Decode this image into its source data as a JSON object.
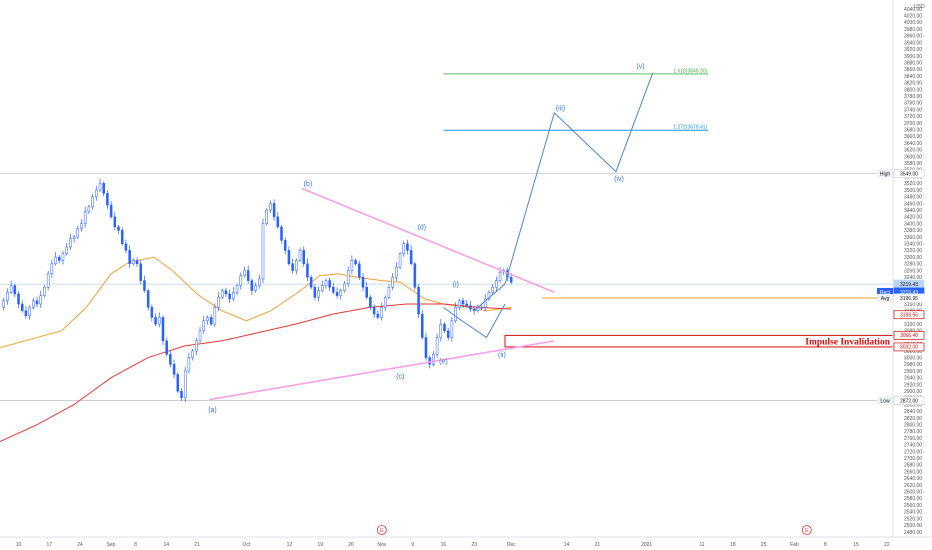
{
  "chart_data": {
    "type": "candlestick",
    "currency": "USD",
    "y_ticks": [
      2480,
      2500,
      2520,
      2540,
      2560,
      2580,
      2600,
      2620,
      2640,
      2660,
      2680,
      2700,
      2720,
      2740,
      2760,
      2780,
      2800,
      2820,
      2840,
      2860,
      2880,
      2900,
      2920,
      2940,
      2960,
      2980,
      3000,
      3020,
      3040,
      3060,
      3080,
      3100,
      3120,
      3140,
      3160,
      3180,
      3200,
      3220,
      3240,
      3260,
      3280,
      3300,
      3320,
      3340,
      3360,
      3380,
      3400,
      3420,
      3440,
      3460,
      3480,
      3500,
      3520,
      3540,
      3560,
      3580,
      3600,
      3620,
      3640,
      3660,
      3680,
      3700,
      3720,
      3740,
      3760,
      3780,
      3800,
      3820,
      3840,
      3860,
      3880,
      3900,
      3920,
      3940,
      3960,
      3980,
      4000,
      4020,
      4040
    ],
    "ylim": [
      2465,
      4055
    ],
    "x_ticks": [
      {
        "label": "10",
        "bar": 3
      },
      {
        "label": "17",
        "bar": 8
      },
      {
        "label": "24",
        "bar": 13
      },
      {
        "label": "Sep",
        "bar": 18
      },
      {
        "label": "8",
        "bar": 22
      },
      {
        "label": "14",
        "bar": 27
      },
      {
        "label": "21",
        "bar": 32
      },
      {
        "label": "Oct",
        "bar": 40
      },
      {
        "label": "12",
        "bar": 47
      },
      {
        "label": "19",
        "bar": 52
      },
      {
        "label": "26",
        "bar": 57
      },
      {
        "label": "Nov",
        "bar": 62
      },
      {
        "label": "9",
        "bar": 67
      },
      {
        "label": "16",
        "bar": 72
      },
      {
        "label": "23",
        "bar": 77
      },
      {
        "label": "Dec",
        "bar": 83
      },
      {
        "label": "14",
        "bar": 92
      },
      {
        "label": "21",
        "bar": 97
      },
      {
        "label": "2021",
        "bar": 105
      },
      {
        "label": "11",
        "bar": 114
      },
      {
        "label": "18",
        "bar": 119
      },
      {
        "label": "25",
        "bar": 124
      },
      {
        "label": "Feb",
        "bar": 129
      },
      {
        "label": "8",
        "bar": 134
      },
      {
        "label": "15",
        "bar": 139
      },
      {
        "label": "22",
        "bar": 144
      }
    ],
    "xlim": [
      0,
      145
    ],
    "price_closes": [
      3150,
      3170,
      3195,
      3215,
      3190,
      3160,
      3140,
      3125,
      3150,
      3170,
      3160,
      3185,
      3210,
      3250,
      3280,
      3300,
      3290,
      3310,
      3330,
      3355,
      3360,
      3385,
      3400,
      3435,
      3450,
      3480,
      3500,
      3520,
      3490,
      3455,
      3420,
      3390,
      3380,
      3340,
      3320,
      3280,
      3290,
      3280,
      3230,
      3200,
      3150,
      3120,
      3100,
      3120,
      3050,
      3010,
      2980,
      2950,
      2900,
      2880,
      2960,
      3000,
      3020,
      3050,
      3080,
      3110,
      3120,
      3100,
      3150,
      3180,
      3200,
      3190,
      3175,
      3195,
      3215,
      3245,
      3260,
      3230,
      3200,
      3215,
      3235,
      3400,
      3440,
      3460,
      3420,
      3390,
      3350,
      3320,
      3280,
      3260,
      3290,
      3320,
      3280,
      3240,
      3210,
      3180,
      3200,
      3215,
      3230,
      3210,
      3195,
      3185,
      3200,
      3220,
      3260,
      3290,
      3280,
      3240,
      3210,
      3180,
      3150,
      3130,
      3120,
      3150,
      3180,
      3210,
      3240,
      3270,
      3310,
      3340,
      3320,
      3280,
      3210,
      3130,
      3060,
      3000,
      2980,
      3010,
      3060,
      3100,
      3080,
      3060,
      3110,
      3150,
      3170,
      3160,
      3155,
      3145,
      3140,
      3150,
      3150,
      3175,
      3195,
      3210,
      3230,
      3255,
      3260,
      3240,
      3225
    ],
    "candles_start_bar": 0,
    "candles_end_bar": 83,
    "series": [
      {
        "name": "",
        "color": "#f5a033",
        "points": [
          [
            0,
            3030
          ],
          [
            5,
            3055
          ],
          [
            10,
            3080
          ],
          [
            14,
            3150
          ],
          [
            18,
            3250
          ],
          [
            21,
            3285
          ],
          [
            25,
            3300
          ],
          [
            28,
            3260
          ],
          [
            32,
            3190
          ],
          [
            36,
            3140
          ],
          [
            40,
            3110
          ],
          [
            44,
            3140
          ],
          [
            48,
            3190
          ],
          [
            52,
            3245
          ],
          [
            55,
            3250
          ],
          [
            58,
            3240
          ],
          [
            62,
            3230
          ],
          [
            65,
            3225
          ],
          [
            69,
            3175
          ],
          [
            72,
            3160
          ],
          [
            76,
            3150
          ],
          [
            79,
            3140
          ],
          [
            83,
            3150
          ]
        ]
      },
      {
        "name": "",
        "color": "#e53935",
        "points": [
          [
            0,
            2750
          ],
          [
            6,
            2800
          ],
          [
            12,
            2860
          ],
          [
            18,
            2940
          ],
          [
            24,
            3000
          ],
          [
            30,
            3035
          ],
          [
            36,
            3050
          ],
          [
            42,
            3075
          ],
          [
            48,
            3100
          ],
          [
            54,
            3130
          ],
          [
            60,
            3150
          ],
          [
            66,
            3160
          ],
          [
            72,
            3160
          ],
          [
            78,
            3150
          ],
          [
            83,
            3145
          ]
        ]
      }
    ],
    "triangle_upper": [
      [
        49,
        3505
      ],
      [
        90,
        3195
      ]
    ],
    "triangle_lower": [
      [
        34,
        2875
      ],
      [
        90,
        3050
      ]
    ],
    "wave_path": [
      [
        77,
        3140
      ],
      [
        82,
        3220
      ],
      [
        90,
        3730
      ],
      [
        100,
        3555
      ],
      [
        106,
        3850
      ]
    ],
    "sub_wave_path": [
      [
        72,
        3150
      ],
      [
        75,
        3110
      ],
      [
        79,
        3060
      ],
      [
        82,
        3160
      ]
    ],
    "wave_labels": [
      {
        "text": "(a)",
        "bar": 34.5,
        "price": 2845
      },
      {
        "text": "(b)",
        "bar": 50,
        "price": 3520
      },
      {
        "text": "(c)",
        "bar": 65,
        "price": 2945
      },
      {
        "text": "(d)",
        "bar": 68.5,
        "price": 3390
      },
      {
        "text": "(e)",
        "bar": 72,
        "price": 2990
      },
      {
        "text": "(i)",
        "bar": 74,
        "price": 3220
      },
      {
        "text": "(ii)",
        "bar": 81.5,
        "price": 3010
      },
      {
        "text": "(iii)",
        "bar": 91,
        "price": 3745
      },
      {
        "text": "(iv)",
        "bar": 100.5,
        "price": 3535
      },
      {
        "text": "(v)",
        "bar": 104,
        "price": 3870
      }
    ],
    "fib_levels": [
      {
        "label": "1.618(3846.30)",
        "price": 3846.3,
        "bar_from": 72,
        "bar_to": 115,
        "color": "#4caf50"
      },
      {
        "label": "1.272(3678.41)",
        "price": 3678.41,
        "bar_from": 72,
        "bar_to": 115,
        "color": "#2196f3"
      }
    ],
    "price_tags": [
      {
        "label": "High",
        "value": "3549.00",
        "price": 3549,
        "kind": "hl"
      },
      {
        "label": "",
        "value": "3219.43",
        "price": 3219.43,
        "kind": "blue-light"
      },
      {
        "label": "Rect",
        "value": "3219.43",
        "price": 3196,
        "kind": "blue"
      },
      {
        "label": "Avg",
        "value": "3196.95",
        "price": 3178,
        "kind": "plain"
      },
      {
        "label": "",
        "value": "3183.56",
        "price": 3128,
        "kind": "red"
      },
      {
        "label": "",
        "value": "3066.40",
        "price": 3066.4,
        "kind": "red"
      },
      {
        "label": "",
        "value": "3032.00",
        "price": 3032,
        "kind": "red"
      },
      {
        "label": "Low",
        "value": "2872.00",
        "price": 2872,
        "kind": "hl"
      }
    ],
    "invalidation_label": "Impulse Invalidation",
    "invalidation_zone": {
      "from": 3032,
      "to": 3066.4,
      "bar_from": 82,
      "bar_to": 145
    },
    "orange_hline": {
      "price": 3178,
      "bar_from": 88,
      "bar_to": 145
    },
    "blue_hline": {
      "price": 3219.43,
      "bar_from": 0,
      "bar_to": 145
    },
    "high_hline": {
      "price": 3549,
      "bar_from": 0,
      "bar_to": 145
    },
    "low_hline": {
      "price": 2872,
      "bar_from": 0,
      "bar_to": 145
    },
    "event_markers": [
      {
        "text": "E",
        "bar": 62
      },
      {
        "text": "E",
        "bar": 131
      }
    ]
  },
  "colors": {
    "candle_up": "#2962ff",
    "candle_down": "#2962ff",
    "triangle": "#f7a1e6",
    "wave": "#5b8fd1",
    "axis_text": "#555555",
    "invalidation": "#d41111"
  }
}
